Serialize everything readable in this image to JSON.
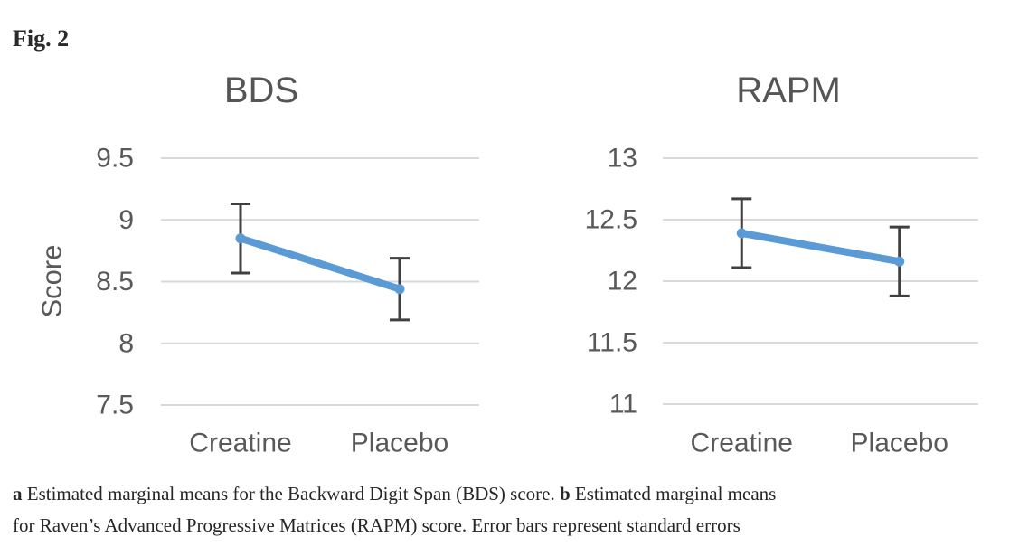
{
  "figure_label": "Fig. 2",
  "caption": {
    "lines": [
      [
        {
          "text": "a",
          "bold": true
        },
        {
          "text": " Estimated marginal means for the Backward Digit Span (BDS) score. ",
          "bold": false
        },
        {
          "text": "b",
          "bold": true
        },
        {
          "text": " Estimated marginal means",
          "bold": false
        }
      ],
      [
        {
          "text": "for Raven’s Advanced Progressive Matrices (RAPM) score. Error bars represent standard errors",
          "bold": false
        }
      ]
    ]
  },
  "colors": {
    "series": "#5B9BD5",
    "error_bar": "#404040",
    "gridline": "#D9D9D9",
    "axis_text": "#595959",
    "title_text": "#555555",
    "caption_text": "#262626"
  },
  "chart_data": [
    {
      "type": "line",
      "title": "BDS",
      "xlabel": "",
      "ylabel": "Score",
      "categories": [
        "Creatine",
        "Placebo"
      ],
      "series": [
        {
          "name": "Estimated marginal mean",
          "values": [
            8.85,
            8.44
          ],
          "errors": [
            0.28,
            0.25
          ]
        }
      ],
      "yticks": [
        9.5,
        9,
        8.5,
        8,
        7.5
      ],
      "ylim": [
        7.5,
        9.5
      ],
      "grid": true,
      "legend": false,
      "error_bars": "standard errors"
    },
    {
      "type": "line",
      "title": "RAPM",
      "xlabel": "",
      "ylabel": "",
      "categories": [
        "Creatine",
        "Placebo"
      ],
      "series": [
        {
          "name": "Estimated marginal mean",
          "values": [
            12.39,
            12.16
          ],
          "errors": [
            0.28,
            0.28
          ]
        }
      ],
      "yticks": [
        13,
        12.5,
        12,
        11.5,
        11
      ],
      "ylim": [
        11,
        13
      ],
      "grid": true,
      "legend": false,
      "error_bars": "standard errors"
    }
  ]
}
